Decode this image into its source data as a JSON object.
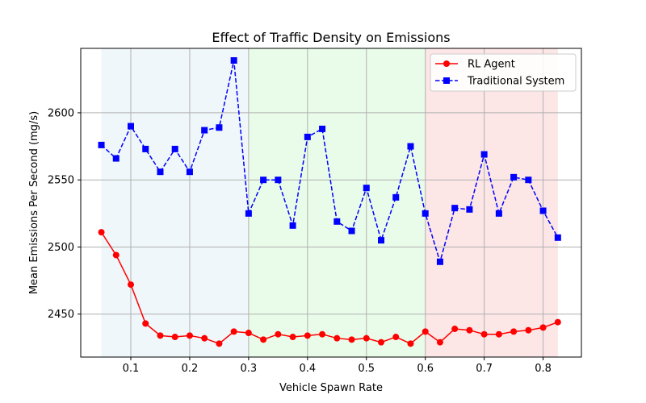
{
  "chart_data": {
    "type": "line",
    "title": "Effect of Traffic Density on Emissions",
    "xlabel": "Vehicle Spawn Rate",
    "ylabel": "Mean Emissions Per Second (mg/s)",
    "xlim": [
      0.015,
      0.865
    ],
    "ylim": [
      2418,
      2648
    ],
    "xticks": [
      0.1,
      0.2,
      0.3,
      0.4,
      0.5,
      0.6,
      0.7,
      0.8
    ],
    "xtick_labels": [
      "0.1",
      "0.2",
      "0.3",
      "0.4",
      "0.5",
      "0.6",
      "0.7",
      "0.8"
    ],
    "yticks": [
      2450,
      2500,
      2550,
      2600
    ],
    "ytick_labels": [
      "2450",
      "2500",
      "2550",
      "2600"
    ],
    "grid": true,
    "legend_position": "top-right",
    "background_regions": [
      {
        "x_start": 0.05,
        "x_end": 0.3,
        "color": "#add8e6"
      },
      {
        "x_start": 0.3,
        "x_end": 0.6,
        "color": "#90ee90"
      },
      {
        "x_start": 0.6,
        "x_end": 0.825,
        "color": "#f08080"
      }
    ],
    "x": [
      0.05,
      0.075,
      0.1,
      0.125,
      0.15,
      0.175,
      0.2,
      0.225,
      0.25,
      0.275,
      0.3,
      0.325,
      0.35,
      0.375,
      0.4,
      0.425,
      0.45,
      0.475,
      0.5,
      0.525,
      0.55,
      0.575,
      0.6,
      0.625,
      0.65,
      0.675,
      0.7,
      0.725,
      0.75,
      0.775,
      0.8,
      0.825
    ],
    "series": [
      {
        "name": "RL Agent",
        "color": "#ff0000",
        "line_style": "solid",
        "marker": "circle",
        "values": [
          2511,
          2494,
          2472,
          2443,
          2434,
          2433,
          2434,
          2432,
          2428,
          2437,
          2436,
          2431,
          2435,
          2433,
          2434,
          2435,
          2432,
          2431,
          2432,
          2429,
          2433,
          2428,
          2437,
          2429,
          2439,
          2438,
          2435,
          2435,
          2437,
          2438,
          2440,
          2444
        ]
      },
      {
        "name": "Traditional System",
        "color": "#0000ff",
        "line_style": "dashed",
        "marker": "square",
        "values": [
          2576,
          2566,
          2590,
          2573,
          2556,
          2573,
          2556,
          2587,
          2589,
          2639,
          2525,
          2550,
          2550,
          2516,
          2582,
          2588,
          2519,
          2512,
          2544,
          2505,
          2537,
          2575,
          2525,
          2489,
          2529,
          2528,
          2569,
          2525,
          2552,
          2550,
          2527,
          2507
        ]
      }
    ]
  }
}
